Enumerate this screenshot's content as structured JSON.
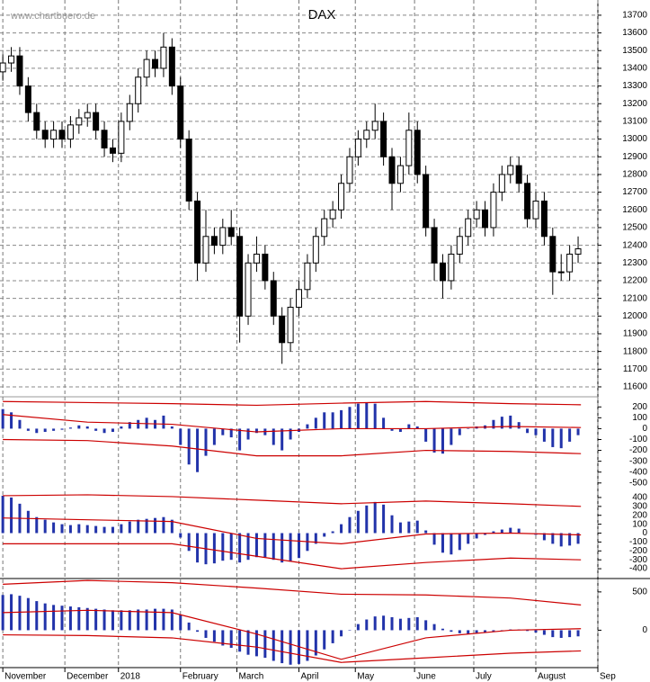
{
  "chart_data": [
    {
      "type": "candlestick",
      "title": "DAX",
      "watermark": "www.chartbuero.de",
      "x": [
        0,
        3,
        6,
        9,
        12,
        15,
        18,
        21,
        24,
        27,
        30,
        33,
        36,
        39,
        42,
        45,
        48,
        51,
        54,
        57,
        60,
        63,
        66,
        69,
        72,
        75,
        78,
        81,
        84,
        87,
        90,
        93,
        96,
        99,
        102,
        105,
        108,
        111,
        114,
        117,
        120,
        123,
        126,
        129,
        132,
        135,
        138,
        141,
        144,
        147,
        150,
        153,
        156,
        159,
        162,
        165,
        168,
        171,
        174,
        177,
        180,
        183,
        186,
        189,
        192,
        195,
        198,
        201,
        204
      ],
      "open": [
        13380,
        13430,
        13470,
        13300,
        13150,
        13050,
        13000,
        13050,
        13000,
        13080,
        13120,
        13150,
        13050,
        12950,
        12920,
        13100,
        13200,
        13350,
        13450,
        13400,
        13520,
        13300,
        13000,
        12650,
        12300,
        12450,
        12400,
        12500,
        12450,
        12000,
        12300,
        12350,
        12200,
        12000,
        11850,
        12050,
        12150,
        12300,
        12450,
        12550,
        12600,
        12750,
        12900,
        13000,
        13050,
        13100,
        12900,
        12750,
        12850,
        13050,
        12800,
        12500,
        12300,
        12200,
        12350,
        12450,
        12550,
        12600,
        12500,
        12700,
        12800,
        12850,
        12750,
        12550,
        12650,
        12450,
        12250,
        12250,
        12350
      ],
      "high": [
        13480,
        13520,
        13520,
        13350,
        13200,
        13100,
        13100,
        13100,
        13130,
        13170,
        13200,
        13200,
        13100,
        13000,
        13150,
        13250,
        13400,
        13500,
        13500,
        13600,
        13570,
        13350,
        13050,
        12700,
        12600,
        12500,
        12550,
        12600,
        12500,
        12350,
        12450,
        12400,
        12250,
        12050,
        12100,
        12200,
        12350,
        12500,
        12600,
        12650,
        12800,
        12950,
        13050,
        13100,
        13200,
        13150,
        12950,
        12900,
        13150,
        13100,
        12850,
        12550,
        12350,
        12400,
        12500,
        12600,
        12650,
        12650,
        12750,
        12850,
        12900,
        12900,
        12800,
        12700,
        12700,
        12500,
        12350,
        12400,
        12450
      ],
      "low": [
        13330,
        13380,
        13250,
        13100,
        13000,
        12950,
        12950,
        12950,
        12950,
        13030,
        13070,
        13000,
        12900,
        12870,
        12870,
        13050,
        13150,
        13300,
        13350,
        13350,
        13250,
        12950,
        12600,
        12200,
        12250,
        12350,
        12350,
        12400,
        11850,
        11950,
        12250,
        12150,
        11950,
        11730,
        11800,
        12000,
        12100,
        12250,
        12400,
        12500,
        12550,
        12700,
        12850,
        12950,
        13000,
        12850,
        12600,
        12700,
        12800,
        12750,
        12450,
        12200,
        12100,
        12150,
        12300,
        12400,
        12500,
        12450,
        12450,
        12650,
        12750,
        12700,
        12500,
        12500,
        12400,
        12120,
        12200,
        12200,
        12300
      ],
      "close": [
        13430,
        13470,
        13300,
        13150,
        13050,
        13000,
        13050,
        13000,
        13080,
        13120,
        13150,
        13050,
        12950,
        12920,
        13100,
        13200,
        13350,
        13450,
        13400,
        13520,
        13300,
        13000,
        12650,
        12300,
        12450,
        12400,
        12500,
        12450,
        12000,
        12300,
        12350,
        12200,
        12000,
        11850,
        12050,
        12150,
        12300,
        12450,
        12550,
        12600,
        12750,
        12900,
        13000,
        13050,
        13100,
        12900,
        12750,
        12850,
        13050,
        12800,
        12500,
        12300,
        12200,
        12350,
        12450,
        12550,
        12600,
        12500,
        12700,
        12800,
        12850,
        12750,
        12550,
        12650,
        12450,
        12250,
        12250,
        12350,
        12380
      ],
      "ylim": [
        11549,
        13786
      ],
      "yticks": [
        11600,
        11700,
        11800,
        11900,
        12000,
        12100,
        12200,
        12300,
        12400,
        12500,
        12600,
        12700,
        12800,
        12900,
        13000,
        13100,
        13200,
        13300,
        13400,
        13500,
        13600,
        13700
      ],
      "xlim": [
        -1,
        211
      ],
      "xticks": [
        {
          "value": 0,
          "label": "November"
        },
        {
          "value": 22,
          "label": "December"
        },
        {
          "value": 41,
          "label": "2018"
        },
        {
          "value": 63,
          "label": "February"
        },
        {
          "value": 83,
          "label": "March"
        },
        {
          "value": 105,
          "label": "April"
        },
        {
          "value": 125,
          "label": "May"
        },
        {
          "value": 146,
          "label": "June"
        },
        {
          "value": 167,
          "label": "July"
        },
        {
          "value": 189,
          "label": "August"
        },
        {
          "value": 211,
          "label": "Sep"
        }
      ],
      "grid": true
    },
    {
      "type": "oscillator",
      "color": "#2233aa",
      "x": [
        0,
        3,
        6,
        9,
        12,
        15,
        18,
        21,
        24,
        27,
        30,
        33,
        36,
        39,
        42,
        45,
        48,
        51,
        54,
        57,
        60,
        63,
        66,
        69,
        72,
        75,
        78,
        81,
        84,
        87,
        90,
        93,
        96,
        99,
        102,
        105,
        108,
        111,
        114,
        117,
        120,
        123,
        126,
        129,
        132,
        135,
        138,
        141,
        144,
        147,
        150,
        153,
        156,
        159,
        162,
        165,
        168,
        171,
        174,
        177,
        180,
        183,
        186,
        189,
        192,
        195,
        198,
        201,
        204
      ],
      "values": [
        180,
        150,
        80,
        -20,
        -40,
        -30,
        -20,
        -10,
        10,
        30,
        20,
        -20,
        -40,
        -30,
        20,
        60,
        80,
        100,
        80,
        120,
        20,
        -150,
        -330,
        -400,
        -250,
        -150,
        -60,
        -80,
        -200,
        -100,
        -40,
        -60,
        -150,
        -200,
        -100,
        -30,
        40,
        100,
        150,
        150,
        170,
        200,
        230,
        240,
        230,
        100,
        -20,
        -30,
        40,
        20,
        -120,
        -220,
        -230,
        -150,
        -60,
        0,
        20,
        30,
        80,
        110,
        120,
        60,
        -40,
        -60,
        -120,
        -170,
        -180,
        -120,
        -60
      ],
      "series": [
        {
          "color": "#cc0000",
          "x": [
            0,
            30,
            60,
            90,
            120,
            150,
            180,
            205
          ],
          "values": [
            250,
            240,
            230,
            215,
            235,
            250,
            230,
            220
          ]
        },
        {
          "color": "#cc0000",
          "x": [
            0,
            30,
            60,
            90,
            120,
            150,
            180,
            205
          ],
          "values": [
            130,
            60,
            40,
            -30,
            0,
            0,
            20,
            10
          ]
        },
        {
          "color": "#cc0000",
          "x": [
            0,
            30,
            60,
            90,
            120,
            150,
            180,
            205
          ],
          "values": [
            -100,
            -110,
            -160,
            -250,
            -250,
            -200,
            -210,
            -230
          ]
        }
      ],
      "ylim": [
        -568,
        285
      ],
      "yticks": [
        200,
        100,
        0,
        -100,
        -200,
        -300,
        -400,
        -500
      ],
      "grid": false
    },
    {
      "type": "oscillator",
      "color": "#2233aa",
      "x": [
        0,
        3,
        6,
        9,
        12,
        15,
        18,
        21,
        24,
        27,
        30,
        33,
        36,
        39,
        42,
        45,
        48,
        51,
        54,
        57,
        60,
        63,
        66,
        69,
        72,
        75,
        78,
        81,
        84,
        87,
        90,
        93,
        96,
        99,
        102,
        105,
        108,
        111,
        114,
        117,
        120,
        123,
        126,
        129,
        132,
        135,
        138,
        141,
        144,
        147,
        150,
        153,
        156,
        159,
        162,
        165,
        168,
        171,
        174,
        177,
        180,
        183,
        186,
        189,
        192,
        195,
        198,
        201,
        204
      ],
      "values": [
        420,
        400,
        330,
        250,
        180,
        150,
        120,
        100,
        90,
        100,
        90,
        80,
        70,
        70,
        100,
        130,
        150,
        160,
        170,
        180,
        150,
        -50,
        -200,
        -330,
        -350,
        -340,
        -310,
        -300,
        -330,
        -300,
        -270,
        -270,
        -300,
        -330,
        -320,
        -280,
        -200,
        -120,
        -40,
        20,
        100,
        180,
        250,
        310,
        350,
        320,
        200,
        120,
        130,
        140,
        30,
        -130,
        -220,
        -240,
        -190,
        -120,
        -60,
        -20,
        20,
        40,
        60,
        50,
        0,
        -20,
        -80,
        -120,
        -150,
        -140,
        -120
      ],
      "series": [
        {
          "color": "#cc0000",
          "x": [
            0,
            30,
            60,
            90,
            120,
            150,
            180,
            205
          ],
          "values": [
            420,
            430,
            410,
            370,
            330,
            360,
            330,
            300
          ]
        },
        {
          "color": "#cc0000",
          "x": [
            0,
            30,
            60,
            90,
            120,
            150,
            180,
            205
          ],
          "values": [
            170,
            150,
            130,
            -60,
            -120,
            -10,
            0,
            -20
          ]
        },
        {
          "color": "#cc0000",
          "x": [
            0,
            30,
            60,
            90,
            120,
            150,
            180,
            205
          ],
          "values": [
            -120,
            -120,
            -120,
            -260,
            -400,
            -330,
            -280,
            -300
          ]
        }
      ],
      "ylim": [
        -500,
        470
      ],
      "yticks": [
        400,
        300,
        200,
        100,
        0,
        -100,
        -200,
        -300,
        -400
      ],
      "grid": false
    },
    {
      "type": "oscillator",
      "color": "#2233aa",
      "x": [
        0,
        3,
        6,
        9,
        12,
        15,
        18,
        21,
        24,
        27,
        30,
        33,
        36,
        39,
        42,
        45,
        48,
        51,
        54,
        57,
        60,
        63,
        66,
        69,
        72,
        75,
        78,
        81,
        84,
        87,
        90,
        93,
        96,
        99,
        102,
        105,
        108,
        111,
        114,
        117,
        120,
        123,
        126,
        129,
        132,
        135,
        138,
        141,
        144,
        147,
        150,
        153,
        156,
        159,
        162,
        165,
        168,
        171,
        174,
        177,
        180,
        183,
        186,
        189,
        192,
        195,
        198,
        201,
        204
      ],
      "values": [
        460,
        470,
        450,
        420,
        380,
        350,
        330,
        320,
        310,
        300,
        290,
        280,
        270,
        260,
        260,
        260,
        270,
        270,
        280,
        280,
        270,
        200,
        100,
        -20,
        -100,
        -150,
        -200,
        -230,
        -280,
        -320,
        -340,
        -360,
        -400,
        -430,
        -450,
        -440,
        -400,
        -330,
        -250,
        -170,
        -80,
        0,
        80,
        140,
        180,
        190,
        170,
        150,
        160,
        170,
        130,
        80,
        20,
        -20,
        -40,
        -50,
        -40,
        -30,
        -20,
        0,
        10,
        10,
        -10,
        -30,
        -60,
        -90,
        -100,
        -90,
        -80
      ],
      "series": [
        {
          "color": "#cc0000",
          "x": [
            0,
            30,
            60,
            90,
            120,
            150,
            180,
            205
          ],
          "values": [
            600,
            650,
            620,
            550,
            470,
            460,
            420,
            330
          ]
        },
        {
          "color": "#cc0000",
          "x": [
            0,
            30,
            60,
            90,
            120,
            150,
            180,
            205
          ],
          "values": [
            230,
            260,
            230,
            -50,
            -380,
            -100,
            0,
            20
          ]
        },
        {
          "color": "#cc0000",
          "x": [
            0,
            30,
            60,
            90,
            120,
            150,
            180,
            205
          ],
          "values": [
            -60,
            -70,
            -100,
            -220,
            -420,
            -360,
            -300,
            -270
          ]
        }
      ],
      "ylim": [
        -488,
        663
      ],
      "yticks": [
        500,
        0
      ],
      "grid": false
    }
  ]
}
